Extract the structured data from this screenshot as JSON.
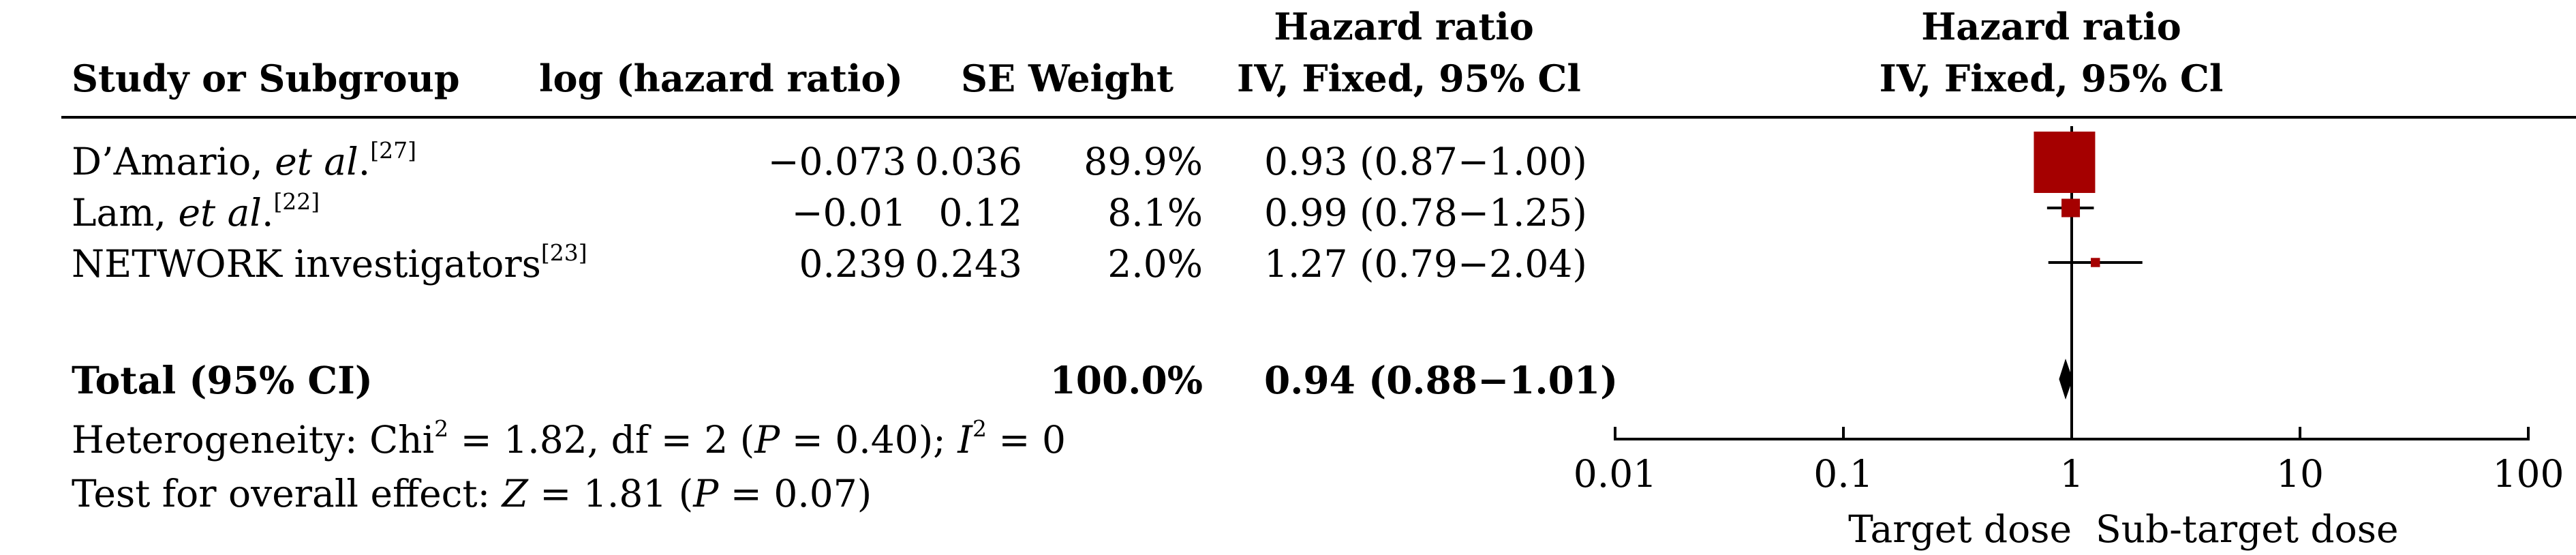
{
  "header": {
    "study": "Study or Subgroup",
    "logHR": "log (hazard ratio)",
    "seWeight": "SE Weight",
    "hr_line1": "Hazard ratio",
    "hr_line2": "IV, Fixed, 95% Cl",
    "plot_line1": "Hazard ratio",
    "plot_line2": "IV, Fixed, 95% Cl"
  },
  "studies": [
    {
      "name_main": "D’Amario, ",
      "name_etal": "et al",
      "name_dot": ".",
      "ref": "[27]",
      "logHR": "−0.073",
      "se": "0.036",
      "weight": "89.9%",
      "ci": "0.93 (0.87−1.00)"
    },
    {
      "name_main": "Lam, ",
      "name_etal": "et al",
      "name_dot": ".",
      "ref": "[22]",
      "logHR": "−0.01",
      "se": "0.12",
      "weight": "8.1%",
      "ci": "0.99 (0.78−1.25)"
    },
    {
      "name_main": "NETWORK investigators",
      "name_etal": "",
      "name_dot": "",
      "ref": "[23]",
      "logHR": "0.239",
      "se": "0.243",
      "weight": "2.0%",
      "ci": "1.27 (0.79−2.04)"
    }
  ],
  "total": {
    "label": "Total (95% CI)",
    "weight": "100.0%",
    "ci": "0.94 (0.88−1.01)"
  },
  "heterogeneity": {
    "prefix": "Heterogeneity: Chi",
    "sup": "2",
    "mid": " = 1.82, df = 2 (",
    "p": "P",
    "mid2": " = 0.40); ",
    "i": "I",
    "sup2": "2",
    "end": " = 0"
  },
  "overall": {
    "prefix": "Test for overall effect: ",
    "z": "Z",
    "mid": " = 1.81 (",
    "p": "P",
    "end": " = 0.07)"
  },
  "axis": {
    "favours_left": "Target dose",
    "favours_right": "Sub-target dose"
  },
  "colors": {
    "square": "#a50000",
    "line": "#000000"
  },
  "chart_data": {
    "type": "scatter",
    "scale": "log",
    "xlim": [
      0.01,
      100
    ],
    "ticks": [
      {
        "value": 0.01,
        "label": "0.01"
      },
      {
        "value": 0.1,
        "label": "0.1"
      },
      {
        "value": 1,
        "label": "1"
      },
      {
        "value": 10,
        "label": "10"
      },
      {
        "value": 100,
        "label": "100"
      }
    ],
    "studies": [
      {
        "name": "D’Amario, et al.",
        "hr": 0.93,
        "lo": 0.87,
        "hi": 1.0,
        "weight": 89.9
      },
      {
        "name": "Lam, et al.",
        "hr": 0.99,
        "lo": 0.78,
        "hi": 1.25,
        "weight": 8.1
      },
      {
        "name": "NETWORK investigators",
        "hr": 1.27,
        "lo": 0.79,
        "hi": 2.04,
        "weight": 2.0
      }
    ],
    "total": {
      "hr": 0.94,
      "lo": 0.88,
      "hi": 1.01
    }
  }
}
